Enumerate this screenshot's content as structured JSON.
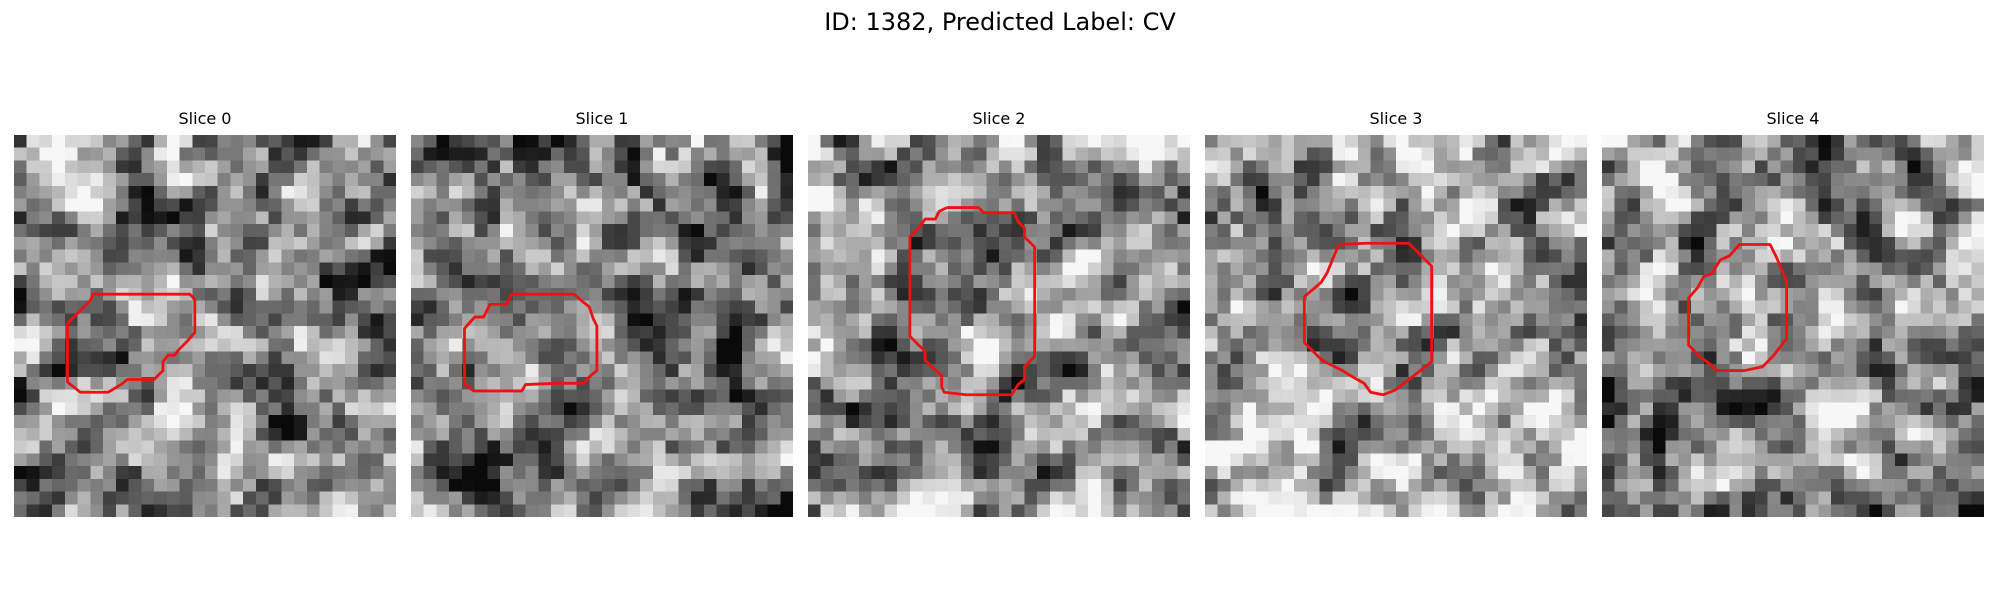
{
  "figure": {
    "title": "ID: 1382, Predicted Label: CV"
  },
  "slices": [
    {
      "title": "Slice 0",
      "seed": 11,
      "tone": 0.52
    },
    {
      "title": "Slice 1",
      "seed": 23,
      "tone": 0.48
    },
    {
      "title": "Slice 2",
      "seed": 37,
      "tone": 0.58
    },
    {
      "title": "Slice 3",
      "seed": 41,
      "tone": 0.62
    },
    {
      "title": "Slice 4",
      "seed": 53,
      "tone": 0.55
    }
  ],
  "colors": {
    "contour": "#ee1111",
    "background": "#ffffff"
  }
}
